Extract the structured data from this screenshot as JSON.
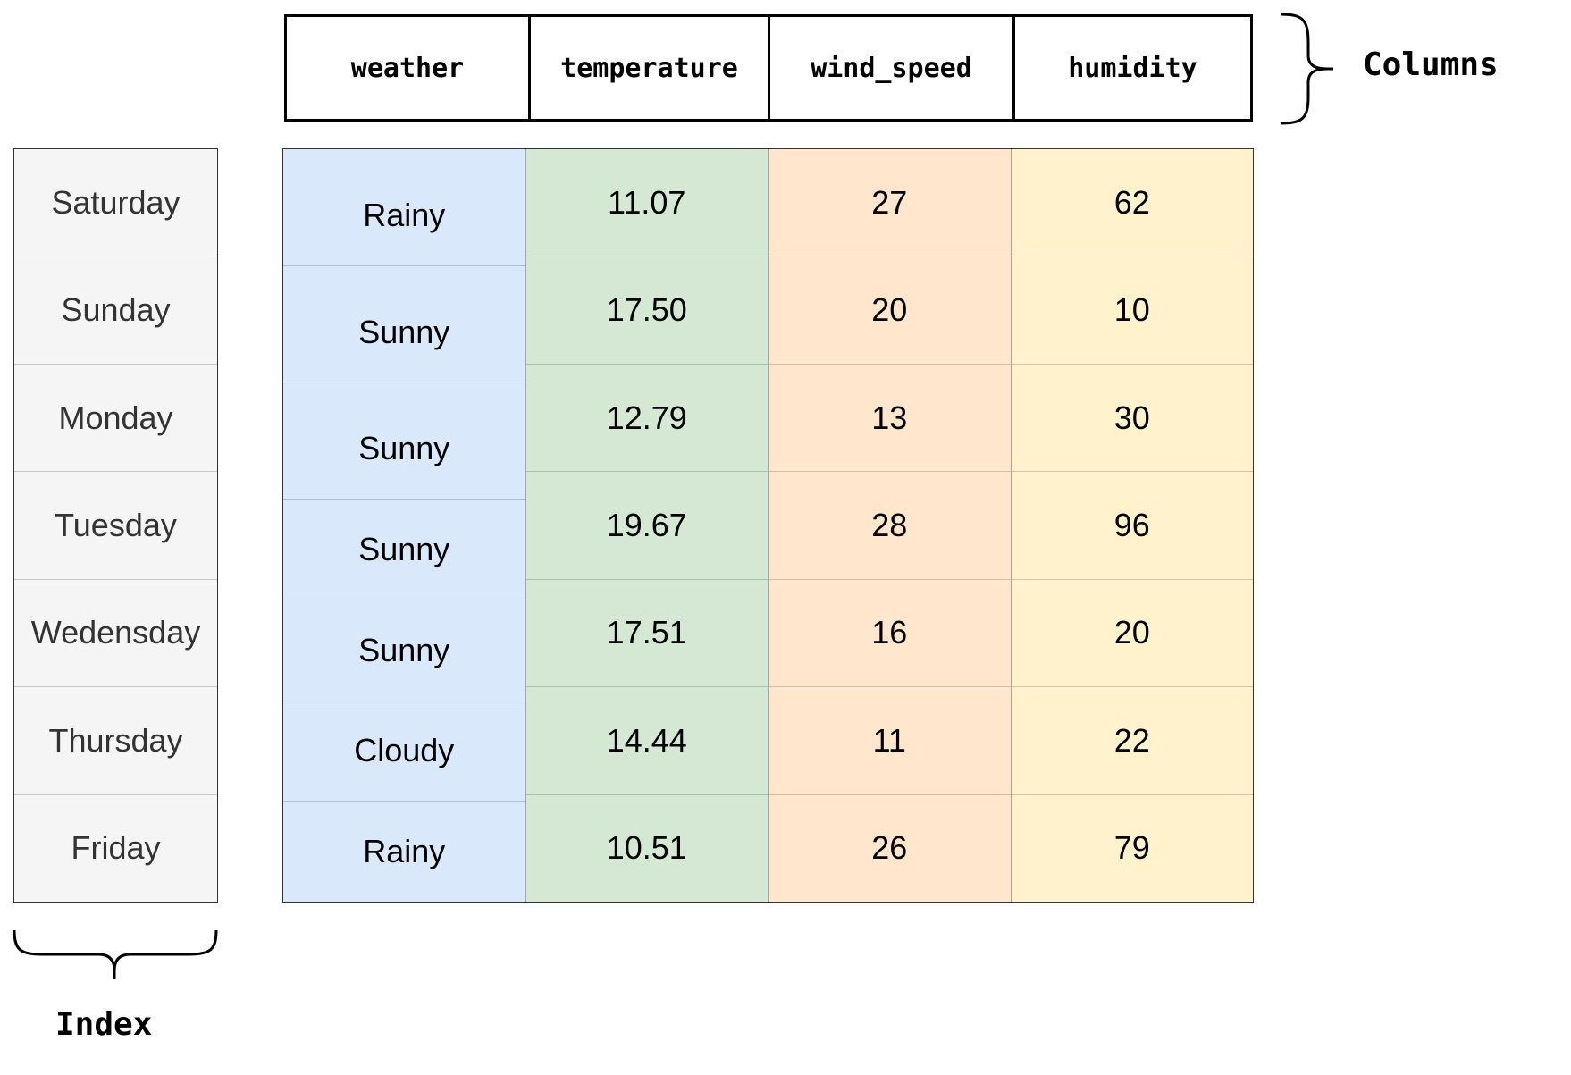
{
  "columns": {
    "label": "Columns",
    "headers": [
      "weather",
      "temperature",
      "wind_speed",
      "humidity"
    ]
  },
  "index": {
    "label": "Index",
    "rows": [
      "Saturday",
      "Sunday",
      "Monday",
      "Tuesday",
      "Wedensday",
      "Thursday",
      "Friday"
    ]
  },
  "table": {
    "weather": [
      "Rainy",
      "Sunny",
      "Sunny",
      "Sunny",
      "Sunny",
      "Cloudy",
      "Rainy"
    ],
    "temperature": [
      "11.07",
      "17.50",
      "12.79",
      "19.67",
      "17.51",
      "14.44",
      "10.51"
    ],
    "wind_speed": [
      "27",
      "20",
      "13",
      "28",
      "16",
      "11",
      "26"
    ],
    "humidity": [
      "62",
      "10",
      "30",
      "96",
      "20",
      "22",
      "79"
    ]
  },
  "colors": {
    "weather": "#dae8fc",
    "temperature": "#d5e8d4",
    "wind_speed": "#ffe6cc",
    "humidity": "#fff2cc",
    "index": "#f5f5f5"
  }
}
